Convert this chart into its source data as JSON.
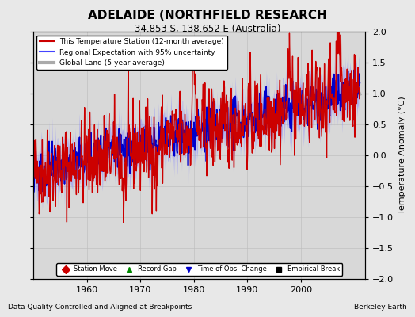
{
  "title": "ADELAIDE (NORTHFIELD RESEARCH",
  "subtitle": "34.853 S, 138.652 E (Australia)",
  "ylabel": "Temperature Anomaly (°C)",
  "xlabel_note": "Data Quality Controlled and Aligned at Breakpoints",
  "credit": "Berkeley Earth",
  "ylim": [
    -2,
    2
  ],
  "xlim": [
    1950,
    2012
  ],
  "xticks": [
    1960,
    1970,
    1980,
    1990,
    2000
  ],
  "yticks": [
    -2,
    -1.5,
    -1,
    -0.5,
    0,
    0.5,
    1,
    1.5,
    2
  ],
  "bg_color": "#e8e8e8",
  "plot_bg_color": "#d8d8d8",
  "legend_items": [
    {
      "label": "This Temperature Station (12-month average)",
      "color": "#cc0000",
      "lw": 1.5,
      "ls": "-"
    },
    {
      "label": "Regional Expectation with 95% uncertainty",
      "color": "#4444ff",
      "lw": 1.5,
      "ls": "-"
    },
    {
      "label": "Global Land (5-year average)",
      "color": "#aaaaaa",
      "lw": 3,
      "ls": "-"
    }
  ],
  "marker_items": [
    {
      "label": "Station Move",
      "color": "#cc0000",
      "marker": "D"
    },
    {
      "label": "Record Gap",
      "color": "#008800",
      "marker": "^"
    },
    {
      "label": "Time of Obs. Change",
      "color": "#0000cc",
      "marker": "v"
    },
    {
      "label": "Empirical Break",
      "color": "#000000",
      "marker": "s"
    }
  ]
}
